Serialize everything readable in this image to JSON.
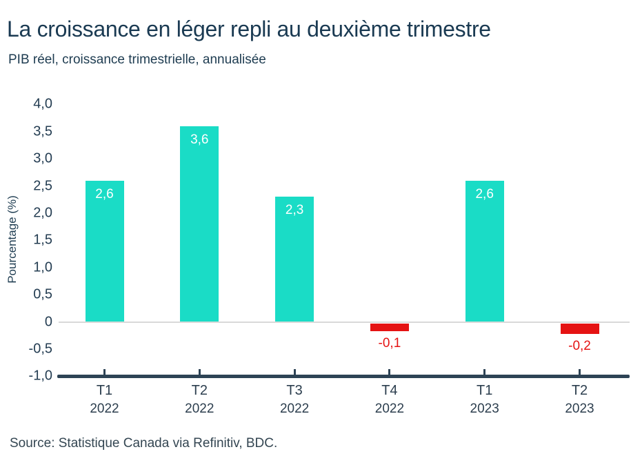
{
  "chart_data": {
    "type": "bar",
    "title": "La croissance en léger repli au deuxième trimestre",
    "subtitle": "PIB réel, croissance trimestrielle, annualisée",
    "ylabel": "Pourcentage (%)",
    "xlabel": "",
    "categories": [
      {
        "quarter": "T1",
        "year": "2022"
      },
      {
        "quarter": "T2",
        "year": "2022"
      },
      {
        "quarter": "T3",
        "year": "2022"
      },
      {
        "quarter": "T4",
        "year": "2022"
      },
      {
        "quarter": "T1",
        "year": "2023"
      },
      {
        "quarter": "T2",
        "year": "2023"
      }
    ],
    "values": [
      2.6,
      3.6,
      2.3,
      -0.1,
      2.6,
      -0.2
    ],
    "value_labels": [
      "2,6",
      "3,6",
      "2,3",
      "-0,1",
      "2,6",
      "-0,2"
    ],
    "ylim": [
      -1.0,
      4.0
    ],
    "ytick_values": [
      4.0,
      3.5,
      3.0,
      2.5,
      2.0,
      1.5,
      1.0,
      0.5,
      0,
      -0.5,
      -1.0
    ],
    "ytick_labels": [
      "4,0",
      "3,5",
      "3,0",
      "2,5",
      "2,0",
      "1,5",
      "1,0",
      "0,5",
      "0",
      "-0,5",
      "-1,0"
    ],
    "grid": "horizontal zero line only",
    "legend": "none",
    "colors": {
      "positive_bar": "#1adcc6",
      "negative_bar": "#e51313",
      "positive_value_label": "#ffffff",
      "negative_value_label": "#e51313",
      "axis_line": "#2d4355",
      "zero_line": "#d9d9d9",
      "text": "#1d3b50"
    }
  },
  "source": {
    "text": "Source: Statistique Canada via Refinitiv, BDC."
  }
}
